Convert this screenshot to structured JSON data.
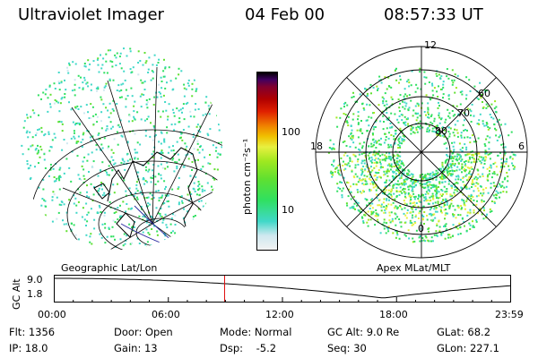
{
  "header": {
    "title": "Ultraviolet Imager",
    "date": "04 Feb 00",
    "time": "08:57:33 UT"
  },
  "colors": {
    "ring": "#000000",
    "timeline_marker": "#e01010",
    "palette": [
      "#f2f2f2",
      "#cfe8f0",
      "#40d8c8",
      "#30e060",
      "#60e030",
      "#a0e820",
      "#e8f040",
      "#f0c000",
      "#f08000",
      "#e02000",
      "#b00000",
      "#800030",
      "#400060",
      "#000000"
    ]
  },
  "colorbar": {
    "unit_label": "photon cm⁻²s⁻¹",
    "tick_labels": [
      "100",
      "10"
    ]
  },
  "geo_panel": {
    "caption": "Geographic Lat/Lon"
  },
  "polar_panel": {
    "caption": "Apex MLat/MLT",
    "mlt_labels": {
      "top": "12",
      "left": "18",
      "right": "6",
      "bottom": "0"
    },
    "lat_labels": [
      "60",
      "70",
      "80"
    ]
  },
  "timeline": {
    "axis_label_top": "9.0",
    "axis_label_bottom": "1.8",
    "axis_title": "GC Alt",
    "ticks": [
      "00:00",
      "06:00",
      "12:00",
      "18:00",
      "23:59"
    ],
    "marker_time_fraction": 0.3733
  },
  "info": {
    "row1": {
      "flt": "Flt: 1356",
      "door": "Door: Open",
      "mode": "Mode: Normal",
      "gcalt": "GC Alt: 9.0 Re",
      "glat": "GLat:  68.2"
    },
    "row2": {
      "ip": "IP: 18.0",
      "gain": "Gain: 13",
      "dsp": "Dsp:    -5.2",
      "seq": "Seq: 30",
      "glon": "GLon: 227.1"
    }
  }
}
